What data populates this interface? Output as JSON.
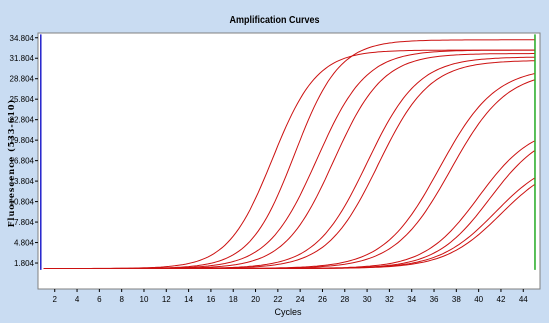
{
  "chart_data": {
    "type": "line",
    "title": "Amplification Curves",
    "xlabel": "Cycles",
    "ylabel": "Fluorescence (533-610)",
    "xlim": [
      0.5,
      45.5
    ],
    "ylim": [
      -2.0,
      35.5
    ],
    "x_ticks": [
      2,
      4,
      6,
      8,
      10,
      12,
      14,
      16,
      18,
      20,
      22,
      24,
      26,
      28,
      30,
      32,
      34,
      36,
      38,
      40,
      42,
      44
    ],
    "y_ticks": [
      1.804,
      4.804,
      7.804,
      10.804,
      13.804,
      16.804,
      19.804,
      22.804,
      25.804,
      28.804,
      31.804,
      34.804
    ],
    "y_tick_labels": [
      "1.804",
      "4.804",
      "7.804",
      "10.804",
      "13.804",
      "16.804",
      "19.804",
      "22.804",
      "25.804",
      "28.804",
      "31.804",
      "34.804"
    ],
    "baseline": 1.0,
    "series": [
      {
        "values_model": "sigmoid",
        "ct": 21.5,
        "slope": 2.0,
        "plateau": 33.0
      },
      {
        "values_model": "sigmoid",
        "ct": 23.5,
        "slope": 2.0,
        "plateau": 34.5
      },
      {
        "values_model": "sigmoid",
        "ct": 25.5,
        "slope": 2.2,
        "plateau": 33.0
      },
      {
        "values_model": "sigmoid",
        "ct": 27.0,
        "slope": 2.2,
        "plateau": 32.5
      },
      {
        "values_model": "sigmoid",
        "ct": 30.0,
        "slope": 2.3,
        "plateau": 32.0
      },
      {
        "values_model": "sigmoid",
        "ct": 31.0,
        "slope": 2.3,
        "plateau": 31.5
      },
      {
        "values_model": "sigmoid",
        "ct": 36.5,
        "slope": 2.5,
        "plateau": 30.5
      },
      {
        "values_model": "sigmoid",
        "ct": 37.5,
        "slope": 2.5,
        "plateau": 30.0
      },
      {
        "values_model": "sigmoid",
        "ct": 40.0,
        "slope": 2.4,
        "plateau": 22.0
      },
      {
        "values_model": "sigmoid",
        "ct": 41.0,
        "slope": 2.4,
        "plateau": 21.5
      },
      {
        "values_model": "sigmoid",
        "ct": 41.5,
        "slope": 2.5,
        "plateau": 17.5
      },
      {
        "values_model": "sigmoid",
        "ct": 42.0,
        "slope": 2.5,
        "plateau": 17.0
      }
    ],
    "colors": {
      "curve": "#cc1111",
      "left_marker": "#2222cc",
      "right_marker": "#22aa22"
    },
    "grid": false,
    "legend": "none"
  }
}
